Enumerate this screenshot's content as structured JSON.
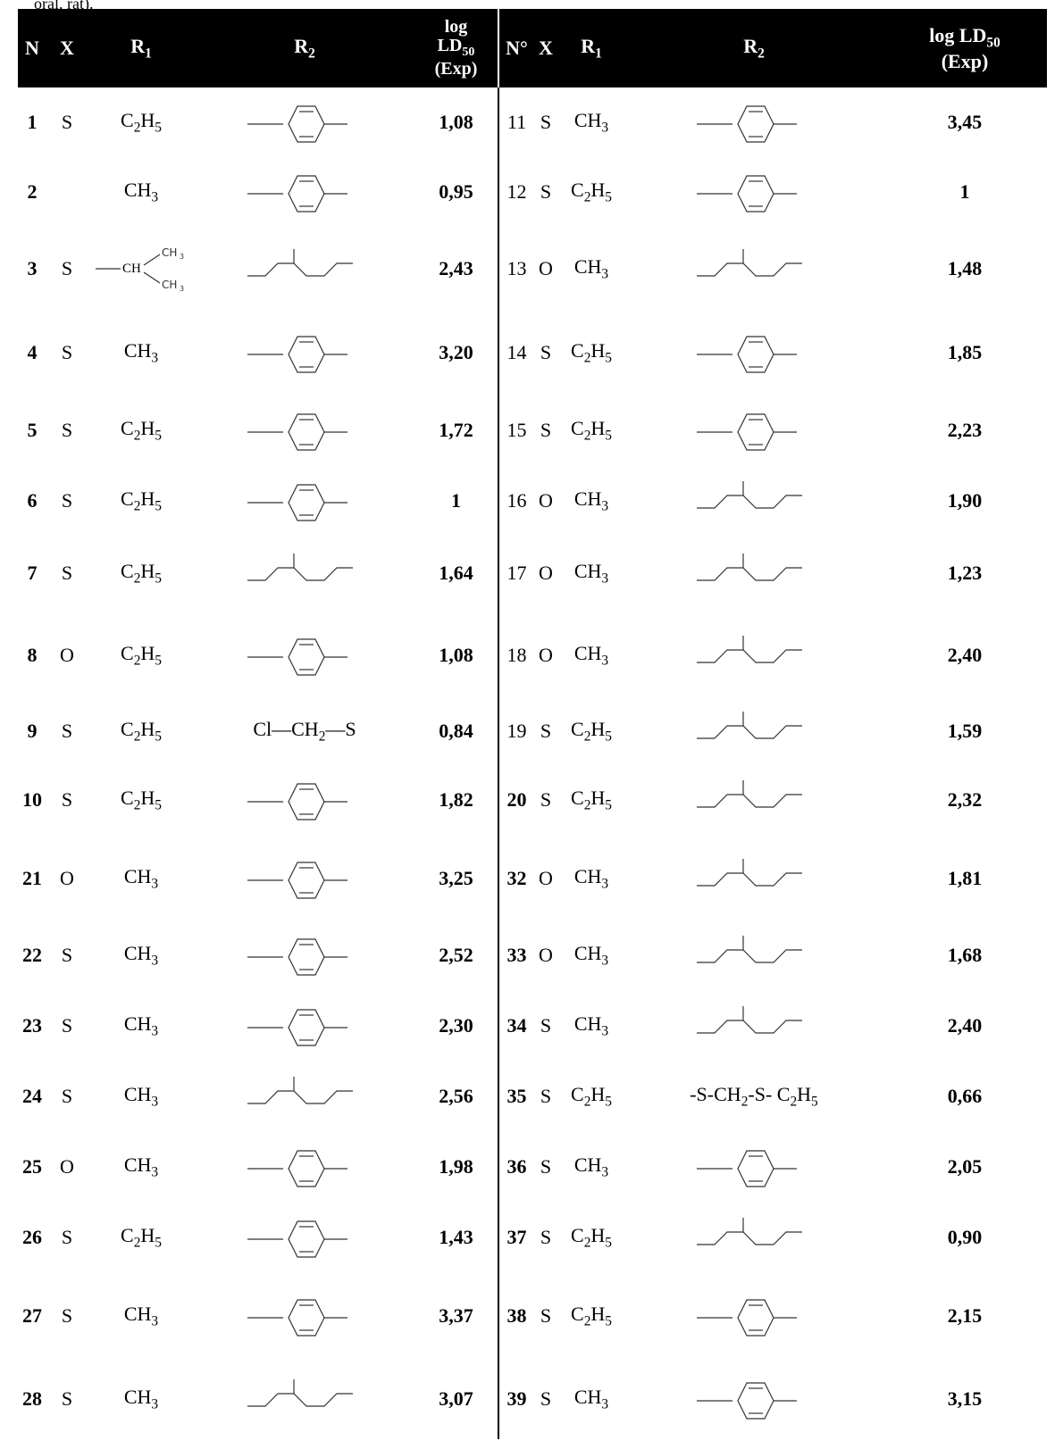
{
  "caption_fragment": "oral, rat).",
  "headers": {
    "n_left": "N",
    "x_left": "X",
    "r1_left": "R",
    "r1_left_sub": "1",
    "r2_left": "R",
    "r2_left_sub": "2",
    "ld_left_line1": "log",
    "ld_left_line2": "LD",
    "ld_left_sub": "50",
    "ld_left_line3": "(Exp)",
    "n_right": "N°",
    "x_right": "X",
    "r1_right": "R",
    "r1_right_sub": "1",
    "r2_right": "R",
    "r2_right_sub": "2",
    "ld_right_line1": "log LD",
    "ld_right_sub": "50",
    "ld_right_line2": "(Exp)"
  },
  "rows": [
    {
      "left": {
        "n": "1",
        "x": "S",
        "r1": "C2H5",
        "r2_icon": "benzotriazinone-methylthio-structure",
        "ld": "1,08"
      },
      "right": {
        "n": "11",
        "x": "S",
        "r1": "CH3",
        "r2_icon": "trichloropyridinyloxy-structure",
        "ld": "3,45"
      }
    },
    {
      "left": {
        "n": "2",
        "x": "",
        "r1": "CH3",
        "r2_icon": "benzotriazinone-methylthio-structure",
        "ld": "0,95"
      },
      "right": {
        "n": "12",
        "x": "S",
        "r1": "C2H5",
        "r2_icon": "dichloro-methylthiophenoxy-structure",
        "ld": "1"
      }
    },
    {
      "left": {
        "n": "3",
        "x": "S",
        "r1": "isopropyl",
        "r2_icon": "benzenesulfonamido-ethylthio-structure",
        "ld": "2,43"
      },
      "right": {
        "n": "13",
        "x": "O",
        "r1": "CH3",
        "r2_icon": "ethylthio-ethylthio-chain",
        "ld": "1,48"
      }
    },
    {
      "left": {
        "n": "4",
        "x": "S",
        "r1": "CH3",
        "r2_icon": "bromodichlorophenoxy-structure",
        "ld": "3,20"
      },
      "right": {
        "n": "14",
        "x": "S",
        "r1": "C2H5",
        "r2_icon": "phthalimido-chloroethylthio-structure",
        "ld": "1,85"
      }
    },
    {
      "left": {
        "n": "5",
        "x": "S",
        "r1": "C2H5",
        "r2_icon": "bromodichlorophenoxy-structure",
        "ld": "1,72"
      },
      "right": {
        "n": "15",
        "x": "S",
        "r1": "C2H5",
        "r2_icon": "dichlorophenoxy-structure",
        "ld": "2,23"
      }
    },
    {
      "left": {
        "n": "6",
        "x": "S",
        "r1": "C2H5",
        "r2_icon": "chlorophenylthio-methylthio-structure",
        "ld": "1"
      },
      "right": {
        "n": "16",
        "x": "O",
        "r1": "CH3",
        "r2_icon": "dichlorovinyloxy-structure",
        "ld": "1,90"
      }
    },
    {
      "left": {
        "n": "7",
        "x": "S",
        "r1": "C2H5",
        "r2_icon": "pentachloroethoxy-structure",
        "ld": "1,64"
      },
      "right": {
        "n": "17",
        "x": "O",
        "r1": "CH3",
        "r2_icon": "dimethylcarbamoyl-propenyloxy-structure",
        "ld": "1,23"
      }
    },
    {
      "left": {
        "n": "8",
        "x": "O",
        "r1": "C2H5",
        "r2_icon": "chlorovinyl-dichlorophenyl-structure",
        "ld": "1,08"
      },
      "right": {
        "n": "18",
        "x": "O",
        "r1": "CH3",
        "r2_icon": "methylcarbamoyl-methylthio-structure",
        "ld": "2,40"
      }
    },
    {
      "left": {
        "n": "9",
        "x": "S",
        "r1": "C2H5",
        "r2_text": "Cl—CH2—S",
        "ld": "0,84"
      },
      "right": {
        "n": "19",
        "x": "S",
        "r1": "C2H5",
        "r2_icon": "ethylthio-ethylthio-chain",
        "ld": "1,59"
      }
    },
    {
      "left": {
        "n": "10",
        "x": "S",
        "r1": "C2H5",
        "r2_icon": "trichloropyridinyloxy-structure",
        "ld": "1,82"
      },
      "right": {
        "n": "20",
        "x": "S",
        "r1": "C2H5",
        "r2_icon": "diethoxyphosphinothioyl-methylthio-structure",
        "ld": "2,32"
      }
    },
    {
      "left": {
        "n": "21",
        "x": "O",
        "r1": "CH3",
        "r2_icon": "ethoxy-ethylpyrimidinyloxy-structure",
        "ld": "3,25"
      },
      "right": {
        "n": "32",
        "x": "O",
        "r1": "CH3",
        "r2_icon": "methylcarbamoylmethylthio-structure",
        "ld": "1,81"
      }
    },
    {
      "left": {
        "n": "22",
        "x": "S",
        "r1": "CH3",
        "r2_icon": "methyl-nitrophenoxy-structure",
        "ld": "2,52"
      },
      "right": {
        "n": "33",
        "x": "O",
        "r1": "CH3",
        "r2_icon": "ethylsulfinyl-ethylthio-structure",
        "ld": "1,68"
      }
    },
    {
      "left": {
        "n": "23",
        "x": "S",
        "r1": "CH3",
        "r2_icon": "methylthio-methylphenoxy-structure",
        "ld": "2,30"
      },
      "right": {
        "n": "34",
        "x": "S",
        "r1": "CH3",
        "r2_icon": "ethoxycarbonyl-benzylthio-structure",
        "ld": "2,40"
      }
    },
    {
      "left": {
        "n": "24",
        "x": "S",
        "r1": "CH3",
        "r2_icon": "formyl-methylcarbamoylmethylthio-structure",
        "ld": "2,56"
      },
      "right": {
        "n": "35",
        "x": "S",
        "r1": "C2H5",
        "r2_text": "-S-CH2-S- C2H5",
        "ld": "0,66"
      }
    },
    {
      "left": {
        "n": "25",
        "x": "O",
        "r1": "CH3",
        "r2_icon": "chlorobicycloheptadienyloxy-structure",
        "ld": "1,98"
      },
      "right": {
        "n": "36",
        "x": "S",
        "r1": "CH3",
        "r2_icon": "phthalimidomethylthio-structure",
        "ld": "2,05"
      }
    },
    {
      "left": {
        "n": "26",
        "x": "S",
        "r1": "C2H5",
        "r2_icon": "chloro-isopropyltriazolyloxy-structure",
        "ld": "1,43"
      },
      "right": {
        "n": "37",
        "x": "S",
        "r1": "C2H5",
        "r2_icon": "isopropylcarbamoylmethylthio-structure",
        "ld": "0,90"
      }
    },
    {
      "left": {
        "n": "27",
        "x": "S",
        "r1": "CH3",
        "r2_icon": "dichloro-iodophenoxy-structure",
        "ld": "3,37"
      },
      "right": {
        "n": "38",
        "x": "S",
        "r1": "C2H5",
        "r2_icon": "diethylamino-methylpyrimidinyloxy-structure",
        "ld": "2,15"
      }
    },
    {
      "left": {
        "n": "28",
        "x": "S",
        "r1": "CH3",
        "r2_icon": "diethoxycarbonyl-ethylthio-structure",
        "ld": "3,07"
      },
      "right": {
        "n": "39",
        "x": "S",
        "r1": "CH3",
        "r2_icon": "diethylamino-methylpyrimidinyloxy-structure",
        "ld": "3,15"
      }
    }
  ]
}
